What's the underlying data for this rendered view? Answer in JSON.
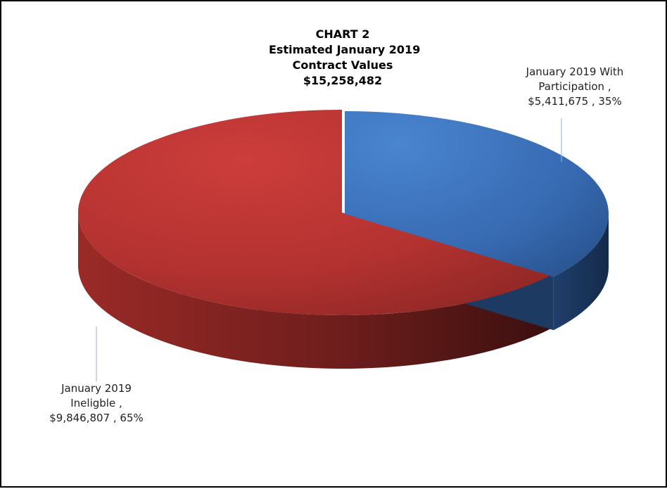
{
  "chart_data": {
    "type": "pie",
    "title_lines": [
      "CHART 2",
      "Estimated January 2019",
      "Contract Values",
      "$15,258,482"
    ],
    "slices": [
      {
        "label_lines": [
          "January 2019 With",
          "Participation ,",
          "$5,411,675 , 35%"
        ],
        "value": 5411675,
        "percent": 35,
        "color": "#3b74c0"
      },
      {
        "label_lines": [
          "January 2019",
          "Ineligble ,",
          "$9,846,807 , 65%"
        ],
        "value": 9846807,
        "percent": 65,
        "color": "#b83432"
      }
    ],
    "style": "3d-exploded-pie",
    "legend": "none"
  }
}
